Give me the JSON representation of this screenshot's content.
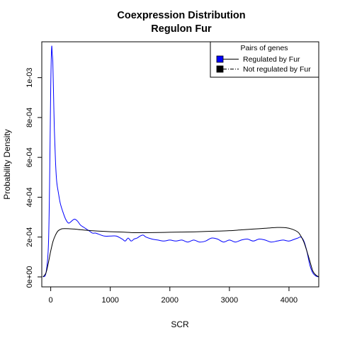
{
  "chart_data": {
    "type": "line",
    "title": "Coexpression Distribution",
    "subtitle": "Regulon Fur",
    "xlabel": "SCR",
    "ylabel": "Probability Density",
    "xlim": [
      -150,
      4500
    ],
    "ylim": [
      -5e-05,
      0.00118
    ],
    "x_ticks": [
      0,
      1000,
      2000,
      3000,
      4000
    ],
    "x_tick_labels": [
      "0",
      "1000",
      "2000",
      "3000",
      "4000"
    ],
    "y_ticks": [
      0,
      0.0002,
      0.0004,
      0.0006,
      0.0008,
      0.001
    ],
    "y_tick_labels": [
      "0e+00",
      "2e-04",
      "4e-04",
      "6e-04",
      "8e-04",
      "1e-03"
    ],
    "grid": false,
    "legend": {
      "title": "Pairs of genes",
      "placement": "top-right",
      "entries": [
        "Regulated by  Fur",
        "Not regulated by  Fur"
      ]
    },
    "series": [
      {
        "name": "Regulated by  Fur",
        "color": "#0000ff",
        "line_style": "solid",
        "x": [
          -130,
          -80,
          -40,
          -20,
          0,
          15,
          25,
          35,
          45,
          60,
          80,
          100,
          130,
          160,
          200,
          250,
          300,
          350,
          400,
          450,
          500,
          550,
          600,
          650,
          700,
          750,
          800,
          900,
          1000,
          1100,
          1200,
          1250,
          1300,
          1350,
          1400,
          1450,
          1500,
          1550,
          1600,
          1700,
          1800,
          1900,
          2000,
          2100,
          2200,
          2300,
          2400,
          2500,
          2600,
          2700,
          2800,
          2900,
          3000,
          3100,
          3200,
          3300,
          3400,
          3500,
          3600,
          3700,
          3800,
          3900,
          4000,
          4100,
          4150,
          4200,
          4250,
          4300,
          4350,
          4400,
          4450,
          4500
        ],
        "y": [
          0.0,
          2e-05,
          0.00015,
          0.00045,
          0.00095,
          0.00115,
          0.00112,
          0.00108,
          0.00095,
          0.00075,
          0.00058,
          0.00048,
          0.00042,
          0.00037,
          0.00033,
          0.00029,
          0.00027,
          0.00028,
          0.00029,
          0.00028,
          0.00026,
          0.00025,
          0.00024,
          0.00023,
          0.00022,
          0.00022,
          0.000215,
          0.000205,
          0.000205,
          0.000205,
          0.00019,
          0.00018,
          0.000195,
          0.00018,
          0.00019,
          0.000195,
          0.000205,
          0.00021,
          0.0002,
          0.00019,
          0.000185,
          0.00018,
          0.000185,
          0.00018,
          0.000185,
          0.000175,
          0.000185,
          0.000175,
          0.00018,
          0.000195,
          0.00019,
          0.000175,
          0.000185,
          0.000175,
          0.000185,
          0.00019,
          0.00018,
          0.00019,
          0.000185,
          0.000175,
          0.00018,
          0.000185,
          0.00018,
          0.00019,
          0.000195,
          0.0002,
          0.00018,
          0.00013,
          6e-05,
          2e-05,
          5e-06,
          0.0
        ]
      },
      {
        "name": "Not regulated by  Fur",
        "color": "#000000",
        "line_style": "solid",
        "x": [
          -130,
          -80,
          -40,
          0,
          40,
          80,
          120,
          160,
          200,
          300,
          400,
          500,
          600,
          800,
          1000,
          1200,
          1400,
          1600,
          1800,
          2000,
          2200,
          2400,
          2600,
          2800,
          3000,
          3200,
          3400,
          3600,
          3800,
          3950,
          4050,
          4150,
          4200,
          4250,
          4300,
          4350,
          4400,
          4450,
          4500
        ],
        "y": [
          0.0,
          2e-05,
          7e-05,
          0.00013,
          0.00018,
          0.00021,
          0.00023,
          0.000238,
          0.000242,
          0.000242,
          0.00024,
          0.000237,
          0.000234,
          0.00023,
          0.000227,
          0.000225,
          0.000222,
          0.000222,
          0.000223,
          0.000224,
          0.000225,
          0.000226,
          0.000228,
          0.00023,
          0.000232,
          0.000236,
          0.00024,
          0.000244,
          0.000248,
          0.000247,
          0.00024,
          0.000225,
          0.000205,
          0.000175,
          0.00013,
          8e-05,
          3e-05,
          1e-05,
          0.0
        ]
      }
    ]
  }
}
